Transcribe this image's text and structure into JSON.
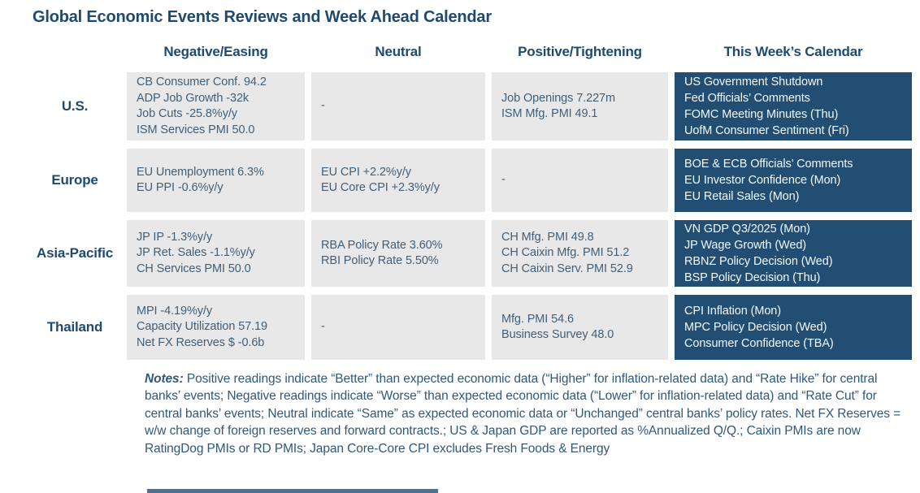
{
  "title": "Global Economic Events Reviews and Week Ahead Calendar",
  "columns": [
    {
      "label": "Negative/Easing"
    },
    {
      "label": "Neutral"
    },
    {
      "label": "Positive/Tightening"
    },
    {
      "label": "This Week’s Calendar"
    }
  ],
  "rows": [
    {
      "region": "U.S.",
      "negative": [
        "CB Consumer Conf. 94.2",
        "ADP Job Growth -32k",
        "Job Cuts -25.8%y/y",
        "ISM Services PMI 50.0"
      ],
      "neutral": [
        "-"
      ],
      "positive": [
        "Job Openings 7.227m",
        "ISM Mfg. PMI 49.1"
      ],
      "calendar": [
        "US Government Shutdown",
        "Fed Officials’ Comments",
        "FOMC Meeting Minutes (Thu)",
        "UofM Consumer Sentiment (Fri)"
      ]
    },
    {
      "region": "Europe",
      "negative": [
        "EU Unemployment 6.3%",
        "EU PPI -0.6%y/y"
      ],
      "neutral": [
        "EU CPI +2.2%y/y",
        "EU Core CPI +2.3%y/y"
      ],
      "positive": [
        "-"
      ],
      "calendar": [
        "BOE & ECB Officials’ Comments",
        "EU Investor Confidence (Mon)",
        "EU Retail Sales (Mon)"
      ]
    },
    {
      "region": "Asia-Pacific",
      "negative": [
        "JP IP -1.3%y/y",
        "JP Ret. Sales -1.1%y/y",
        "CH Services PMI 50.0"
      ],
      "neutral": [
        "RBA Policy Rate 3.60%",
        "RBI Policy Rate 5.50%"
      ],
      "positive": [
        "CH Mfg. PMI 49.8",
        "CH Caixin Mfg. PMI 51.2",
        "CH Caixin Serv. PMI 52.9"
      ],
      "calendar": [
        "VN GDP Q3/2025 (Mon)",
        "JP Wage Growth (Wed)",
        "RBNZ Policy Decision (Wed)",
        "BSP Policy Decision (Thu)"
      ]
    },
    {
      "region": "Thailand",
      "negative": [
        "MPI -4.19%y/y",
        "Capacity Utilization 57.19",
        "Net FX Reserves $ -0.6b"
      ],
      "neutral": [
        "-"
      ],
      "positive": [
        "Mfg. PMI 54.6",
        "Business Survey 48.0"
      ],
      "calendar": [
        "CPI Inflation (Mon)",
        "MPC Policy Decision (Wed)",
        "Consumer Confidence (TBA)"
      ]
    }
  ],
  "notes": {
    "label": "Notes:",
    "text": " Positive readings indicate “Better” than expected economic data (“Higher” for inflation-related data) and “Rate Hike” for central banks’ events; Negative readings indicate “Worse” than expected economic data (“Lower” for inflation-related data) and “Rate Cut” for central banks’ events; Neutral indicate “Same” as expected economic data or “Unchanged” central banks’ policy rates. Net FX Reserves = w/w change of foreign reserves and forward contracts.; US & Japan GDP are reported as %Annualized Q/Q.; Caixin PMIs are now RatingDog PMIs or RD PMIs; Japan Core-Core CPI excludes Fresh Foods & Energy"
  },
  "colors": {
    "accent-navy": "#1f4a6e",
    "cell-bg": "#e8e8e8",
    "cell-text": "#3f5f7b",
    "calendar-bg": "#224e74",
    "calendar-text": "#f2f7fa",
    "notes-text": "#30587a"
  }
}
